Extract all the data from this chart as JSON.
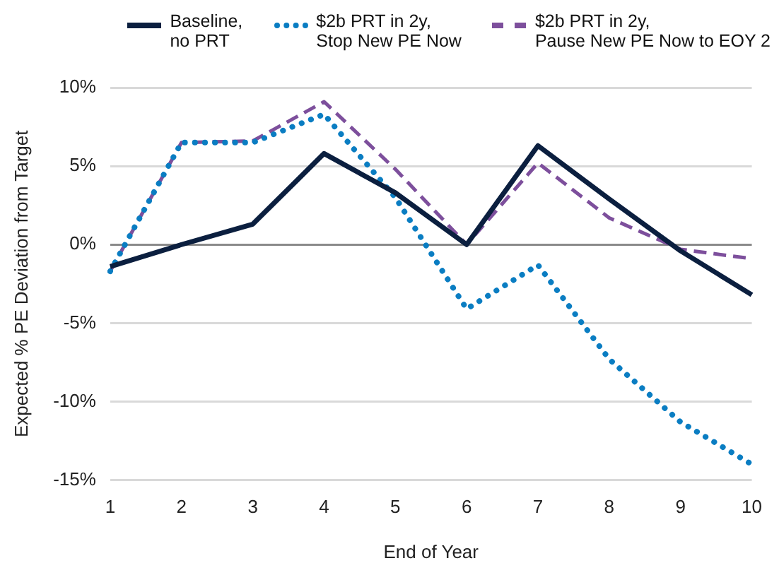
{
  "chart_data": {
    "type": "line",
    "xlabel": "End of Year",
    "ylabel": "Expected % PE Deviation from Target",
    "categories": [
      "1",
      "2",
      "3",
      "4",
      "5",
      "6",
      "7",
      "8",
      "9",
      "10"
    ],
    "series": [
      {
        "name": "Baseline, no PRT",
        "color": "#0b1f3f",
        "line_style": "solid",
        "values": [
          -1.4,
          0,
          1.3,
          5.8,
          3.3,
          0,
          6.3,
          2.9,
          -0.4,
          -3.2
        ]
      },
      {
        "name": "$2b PRT in 2y, Stop New PE Now",
        "color": "#0a7dc2",
        "line_style": "dotted",
        "values": [
          -1.7,
          6.5,
          6.5,
          8.3,
          3.0,
          -4.1,
          -1.3,
          -7.3,
          -11.3,
          -14.0
        ]
      },
      {
        "name": "$2b PRT in 2y, Pause New PE Now to EOY 2",
        "color": "#7d4f9c",
        "line_style": "dashed",
        "values": [
          -1.7,
          6.5,
          6.6,
          9.1,
          4.8,
          0,
          5.2,
          1.7,
          -0.3,
          -0.9
        ]
      }
    ],
    "ylim": [
      -15,
      10
    ],
    "yticks": [
      {
        "value": -15,
        "label": "-15%"
      },
      {
        "value": -10,
        "label": "-10%"
      },
      {
        "value": -5,
        "label": "-5%"
      },
      {
        "value": 0,
        "label": "0%"
      },
      {
        "value": 5,
        "label": "5%"
      },
      {
        "value": 10,
        "label": "10%"
      }
    ],
    "grid": "y",
    "legend": "top",
    "marker": "none"
  }
}
